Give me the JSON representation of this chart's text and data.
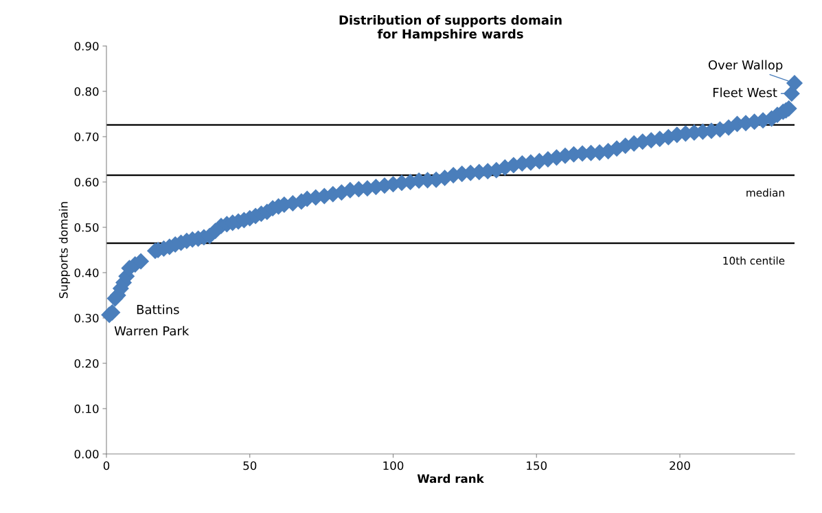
{
  "chart_data": {
    "type": "scatter",
    "title": "Distribution of supports domain\nfor Hampshire wards",
    "xlabel": "Ward rank",
    "ylabel": "Supports domain",
    "series": [
      {
        "color": "#4a7ebb",
        "x": [
          1,
          2,
          3,
          4,
          5,
          6,
          7,
          8,
          10,
          12,
          17,
          18,
          20,
          22,
          24,
          26,
          28,
          30,
          32,
          34,
          36,
          38,
          40,
          42,
          44,
          46,
          48,
          50,
          52,
          54,
          56,
          58,
          60,
          62,
          65,
          68,
          70,
          73,
          76,
          79,
          82,
          85,
          88,
          91,
          94,
          97,
          100,
          103,
          106,
          109,
          112,
          115,
          118,
          121,
          124,
          127,
          130,
          133,
          136,
          139,
          142,
          145,
          148,
          151,
          154,
          157,
          160,
          163,
          166,
          169,
          172,
          175,
          178,
          181,
          184,
          187,
          190,
          193,
          196,
          199,
          202,
          205,
          208,
          211,
          214,
          217,
          220,
          223,
          226,
          229,
          232,
          234,
          236,
          237,
          238,
          239,
          240
        ],
        "values": [
          0.307,
          0.312,
          0.343,
          0.35,
          0.365,
          0.378,
          0.392,
          0.41,
          0.418,
          0.425,
          0.448,
          0.45,
          0.453,
          0.457,
          0.462,
          0.466,
          0.47,
          0.473,
          0.475,
          0.478,
          0.481,
          0.492,
          0.503,
          0.507,
          0.51,
          0.513,
          0.516,
          0.52,
          0.525,
          0.53,
          0.534,
          0.542,
          0.546,
          0.55,
          0.553,
          0.557,
          0.563,
          0.566,
          0.569,
          0.573,
          0.577,
          0.582,
          0.584,
          0.586,
          0.589,
          0.592,
          0.595,
          0.598,
          0.6,
          0.603,
          0.604,
          0.605,
          0.609,
          0.615,
          0.618,
          0.62,
          0.622,
          0.624,
          0.626,
          0.632,
          0.637,
          0.641,
          0.643,
          0.646,
          0.65,
          0.654,
          0.658,
          0.661,
          0.663,
          0.664,
          0.665,
          0.668,
          0.674,
          0.68,
          0.685,
          0.689,
          0.692,
          0.695,
          0.699,
          0.704,
          0.707,
          0.709,
          0.711,
          0.713,
          0.716,
          0.72,
          0.728,
          0.73,
          0.733,
          0.736,
          0.74,
          0.748,
          0.755,
          0.758,
          0.762,
          0.795,
          0.818
        ]
      }
    ],
    "marker": "diamond",
    "xlim": [
      0,
      240
    ],
    "xticks": [
      0,
      50,
      100,
      150,
      200
    ],
    "ylim": [
      0,
      0.9
    ],
    "yticks": [
      {
        "value": 0,
        "label": "0.00"
      },
      {
        "value": 0.1,
        "label": "0.10"
      },
      {
        "value": 0.2,
        "label": "0.20"
      },
      {
        "value": 0.3,
        "label": "0.30"
      },
      {
        "value": 0.4,
        "label": "0.40"
      },
      {
        "value": 0.5,
        "label": "0.50"
      },
      {
        "value": 0.6,
        "label": "0.60"
      },
      {
        "value": 0.7,
        "label": "0.70"
      },
      {
        "value": 0.8,
        "label": "0.80"
      },
      {
        "value": 0.9,
        "label": "0.90"
      }
    ],
    "ref_lines": [
      {
        "axis": "y",
        "value": 0.726,
        "color": "#000000"
      },
      {
        "axis": "y",
        "value": 0.615,
        "label": "median",
        "color": "#000000"
      },
      {
        "axis": "y",
        "value": 0.465,
        "label": "10th centile",
        "color": "#000000"
      }
    ],
    "annotations": [
      {
        "text": "Battins",
        "x": 2,
        "y": 0.312
      },
      {
        "text": "Warren Park",
        "x": 1,
        "y": 0.307
      },
      {
        "text": "Fleet West",
        "x": 239,
        "y": 0.795
      },
      {
        "text": "Over Wallop",
        "x": 240,
        "y": 0.818
      }
    ],
    "grid": false
  }
}
